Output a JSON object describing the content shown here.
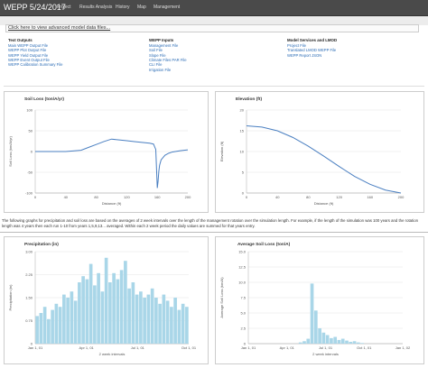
{
  "navbar": {
    "brand": "WEPP 5/24/2017",
    "items": [
      "Project",
      "Results Analysis",
      "History",
      "Map",
      "Management"
    ]
  },
  "advanced_link": "Click here to view advanced model data files...",
  "files": {
    "text_outputs": {
      "header": "Text Outputs",
      "links": [
        "Main WEPP Output File",
        "WEPP Plot Output File",
        "WEPP Yield Output File",
        "WEPP Event Output File",
        "WEPP Calibration Summary File"
      ]
    },
    "wepp_inputs": {
      "header": "WEPP Inputs",
      "links": [
        "Management File",
        "Soil File",
        "Slope File",
        "Climate Files PAR File",
        "CLI File",
        "Irrigation File"
      ]
    },
    "model_services": {
      "header": "Model Services and LMOD",
      "links": [
        "Project File",
        "Translated LMOD WEPP File",
        "WEPP Report JSON"
      ]
    }
  },
  "note": "The following graphs for precipitation and soil loss are based on the averages of 2 week intervals over the length of the management rotation over the simulation length. For example, if the length of the simulation was 100 years and the rotation length was 4 years then each run 1-10 from years 1,5,9,13... averaged. Within each 2 week period the daily values are summed for that years entry.",
  "chart_data": [
    {
      "type": "line",
      "title": "Soil Loss (ton/A/yr)",
      "xlabel": "Distance (ft)",
      "ylabel": "Soil Loss (ton/A/yr)",
      "xlim": [
        0,
        200
      ],
      "ylim": [
        -100,
        100
      ],
      "x_ticks": [
        "0",
        "40",
        "80",
        "120",
        "160",
        "200"
      ],
      "y_ticks": [
        "100",
        "50",
        "0",
        "-50",
        "-100"
      ],
      "x": [
        0,
        20,
        40,
        60,
        70,
        80,
        90,
        100,
        110,
        120,
        130,
        140,
        150,
        155,
        158,
        160,
        161,
        162,
        163,
        165,
        170,
        175,
        180,
        190,
        200
      ],
      "y": [
        0,
        0,
        0,
        3,
        10,
        17,
        24,
        30,
        28,
        26,
        24,
        22,
        20,
        18,
        5,
        -88,
        -72,
        -48,
        -33,
        -20,
        -9,
        -4,
        -1,
        2,
        4
      ],
      "color": "#4a7fc1"
    },
    {
      "type": "line",
      "title": "Elevation (ft)",
      "xlabel": "Distance (ft)",
      "ylabel": "Elevation (ft)",
      "xlim": [
        0,
        200
      ],
      "ylim": [
        0,
        20
      ],
      "x_ticks": [
        "0",
        "40",
        "80",
        "120",
        "160",
        "200"
      ],
      "y_ticks": [
        "20",
        "15",
        "10",
        "5",
        "0"
      ],
      "x": [
        0,
        20,
        40,
        60,
        80,
        100,
        120,
        140,
        160,
        180,
        200
      ],
      "y": [
        16.2,
        15.9,
        15.0,
        13.4,
        11.3,
        8.9,
        6.4,
        4.0,
        2.1,
        0.7,
        0.0
      ],
      "color": "#4a7fc1"
    },
    {
      "type": "bar",
      "title": "Precipitation (in)",
      "xlabel": "2 week intervals",
      "ylabel": "Precipitation (in)",
      "ylim": [
        0,
        3.0
      ],
      "y_ticks": [
        "3.00",
        "2.25",
        "1.50",
        "0.75",
        "0"
      ],
      "x_ticks": [
        "Jan 1, 01",
        "Apr 1, 01",
        "Jul 1, 01",
        "Oct 1, 01"
      ],
      "values": [
        0.9,
        1.0,
        1.2,
        0.8,
        1.1,
        1.3,
        1.2,
        1.6,
        1.5,
        1.7,
        1.4,
        2.0,
        2.2,
        2.1,
        2.6,
        1.9,
        2.3,
        1.7,
        2.8,
        2.0,
        2.3,
        2.1,
        2.4,
        2.7,
        1.8,
        2.0,
        1.6,
        1.7,
        1.5,
        1.6,
        1.8,
        1.5,
        1.3,
        1.6,
        1.4,
        1.2,
        1.5,
        1.1,
        1.3,
        1.2
      ],
      "color": "#a9d6e8"
    },
    {
      "type": "bar",
      "title": "Average Soil Loss (ton/A)",
      "xlabel": "2 week intervals",
      "ylabel": "Average Soil Loss (ton/A)",
      "ylim": [
        0,
        15
      ],
      "y_ticks": [
        "15.0",
        "12.5",
        "10.0",
        "7.5",
        "5.0",
        "2.5",
        "0"
      ],
      "x_ticks": [
        "Jan 1, 01",
        "Apr 1, 01",
        "Jul 1, 01",
        "Oct 1, 01",
        "Jan 1, 02"
      ],
      "values": [
        0,
        0,
        0,
        0,
        0,
        0,
        0,
        0,
        0,
        0,
        0,
        0,
        0,
        0.2,
        0.4,
        0.8,
        9.8,
        5.4,
        2.5,
        1.8,
        1.4,
        0.9,
        1.1,
        0.6,
        0.8,
        0.5,
        0.3,
        0.4,
        0.2,
        0.1,
        0,
        0,
        0,
        0,
        0,
        0,
        0,
        0,
        0,
        0
      ],
      "color": "#a9d6e8"
    }
  ]
}
